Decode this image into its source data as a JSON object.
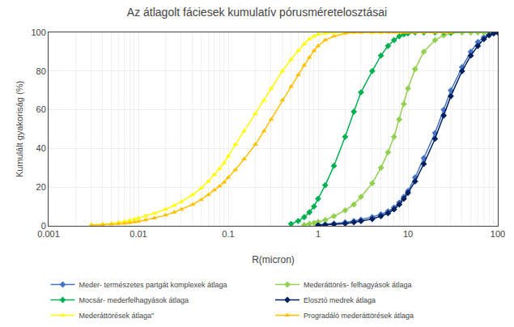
{
  "chart_data": {
    "type": "line",
    "title": "Az átlagolt fáciesek kumulatív pórusméretelosztásai",
    "x_label": "R(micron)",
    "y_label": "Kumulált gyakoriság (%)",
    "log": "x",
    "xlim": [
      0.001,
      100
    ],
    "ylim": [
      0,
      100
    ],
    "xticks": [
      0.001,
      0.01,
      0.1,
      1,
      10,
      100
    ],
    "yticks": [
      0,
      20,
      40,
      60,
      80,
      100
    ],
    "grid": true,
    "legend": "bottom",
    "series": [
      {
        "name": "Meder- természetes partgát komplexek átlaga",
        "color": "#4472c4",
        "marker": "diamond",
        "x": [
          1.0,
          1.2,
          1.5,
          2.0,
          2.5,
          3.0,
          4.0,
          5.0,
          6.0,
          7.0,
          8.0,
          9.0,
          10.0,
          12.0,
          15.0,
          20.0,
          25.0,
          30.0,
          40.0,
          50.0,
          60.0,
          70.0,
          80.0,
          90.0,
          100.0
        ],
        "values": [
          0.5,
          0.8,
          1.2,
          1.8,
          2.5,
          3.2,
          4.5,
          6.0,
          7.5,
          9.5,
          12.0,
          15.0,
          18.0,
          25.0,
          35.0,
          48.0,
          60.0,
          70.0,
          82.0,
          90.0,
          95.0,
          97.5,
          99.0,
          99.5,
          100.0
        ]
      },
      {
        "name": "Mederáttörés- felhagyások átlaga",
        "color": "#92d050",
        "marker": "diamond",
        "x": [
          0.7,
          0.8,
          0.9,
          1.0,
          1.2,
          1.5,
          2.0,
          2.5,
          3.0,
          4.0,
          5.0,
          6.0,
          7.0,
          8.0,
          9.0,
          10.0,
          12.0,
          15.0,
          20.0,
          25.0,
          30.0,
          40.0,
          50.0,
          60.0,
          70.0,
          80.0,
          90.0,
          100.0
        ],
        "values": [
          0.5,
          1.0,
          1.5,
          2.0,
          3.0,
          5.0,
          8.0,
          11.0,
          15.0,
          22.0,
          30.0,
          38.0,
          46.0,
          55.0,
          63.0,
          71.0,
          81.0,
          90.0,
          96.0,
          98.5,
          99.5,
          100.0,
          100.0,
          100.0,
          100.0,
          100.0,
          100.0,
          100.0
        ]
      },
      {
        "name": "Mocsár- mederfelhagyások átlaga",
        "color": "#00b050",
        "marker": "diamond",
        "x": [
          0.5,
          0.6,
          0.7,
          0.8,
          0.9,
          1.0,
          1.2,
          1.5,
          2.0,
          2.5,
          3.0,
          4.0,
          5.0,
          6.0,
          7.0,
          8.0,
          9.0,
          10.0,
          12.0,
          15.0,
          20.0,
          25.0,
          30.0
        ],
        "values": [
          1.0,
          2.5,
          4.5,
          7.0,
          10.0,
          14.0,
          21.0,
          31.0,
          46.0,
          59.0,
          69.0,
          80.0,
          88.0,
          93.0,
          96.0,
          98.0,
          99.0,
          99.5,
          100.0,
          100.0,
          100.0,
          100.0,
          100.0
        ]
      },
      {
        "name": "Elosztó medrek átlaga",
        "color": "#002060",
        "marker": "diamond",
        "x": [
          1.0,
          1.2,
          1.5,
          2.0,
          2.5,
          3.0,
          4.0,
          5.0,
          6.0,
          7.0,
          8.0,
          9.0,
          10.0,
          12.0,
          15.0,
          20.0,
          25.0,
          30.0,
          40.0,
          50.0,
          60.0,
          70.0,
          80.0,
          90.0,
          100.0
        ],
        "values": [
          0.3,
          0.5,
          0.8,
          1.2,
          1.8,
          2.5,
          3.5,
          5.0,
          6.5,
          8.5,
          11.0,
          14.0,
          17.0,
          23.0,
          32.0,
          45.0,
          57.0,
          67.0,
          80.0,
          88.0,
          93.0,
          96.5,
          98.5,
          99.5,
          100.0
        ]
      },
      {
        "name": "Mederáttörések átlaga\"",
        "color": "#ffff00",
        "marker": "triangle-up",
        "x": [
          0.003,
          0.004,
          0.005,
          0.006,
          0.007,
          0.008,
          0.009,
          0.01,
          0.012,
          0.015,
          0.02,
          0.025,
          0.03,
          0.04,
          0.05,
          0.06,
          0.07,
          0.08,
          0.09,
          0.1,
          0.12,
          0.15,
          0.2,
          0.25,
          0.3,
          0.4,
          0.5,
          0.6,
          0.7,
          0.8,
          0.9,
          1.0,
          1.2,
          1.5,
          2.0,
          2.5,
          3.0,
          4.0,
          5.0
        ],
        "values": [
          0.5,
          0.8,
          1.2,
          1.7,
          2.2,
          2.8,
          3.4,
          4.0,
          5.0,
          6.5,
          8.5,
          10.5,
          12.5,
          16.0,
          19.5,
          23.0,
          26.5,
          29.5,
          32.5,
          36.0,
          42.0,
          49.0,
          58.0,
          65.0,
          71.0,
          80.0,
          86.0,
          90.5,
          94.0,
          96.5,
          98.0,
          99.0,
          99.5,
          100.0,
          100.0,
          100.0,
          100.0,
          100.0,
          100.0
        ]
      },
      {
        "name": "Progradáló mederáttörések átlaga",
        "color": "#ffc000",
        "marker": "triangle-up",
        "x": [
          0.003,
          0.004,
          0.005,
          0.006,
          0.007,
          0.008,
          0.009,
          0.01,
          0.012,
          0.015,
          0.02,
          0.025,
          0.03,
          0.04,
          0.05,
          0.06,
          0.07,
          0.08,
          0.09,
          0.1,
          0.12,
          0.15,
          0.2,
          0.25,
          0.3,
          0.4,
          0.5,
          0.6,
          0.7,
          0.8,
          0.9,
          1.0,
          1.2,
          1.5,
          2.0,
          2.5,
          3.0,
          4.0,
          5.0,
          6.0,
          7.0,
          8.0,
          9.0,
          10.0,
          12.0,
          15.0,
          20.0,
          25.0,
          30.0
        ],
        "values": [
          0.3,
          0.5,
          0.8,
          1.0,
          1.3,
          1.6,
          2.0,
          2.3,
          3.0,
          4.0,
          5.5,
          7.0,
          8.5,
          11.0,
          13.5,
          16.0,
          18.5,
          20.5,
          22.5,
          25.0,
          29.0,
          34.5,
          42.0,
          49.0,
          55.0,
          65.0,
          72.0,
          78.0,
          83.0,
          87.0,
          90.5,
          93.0,
          96.0,
          98.0,
          99.5,
          100.0,
          100.0,
          100.0,
          100.0,
          100.0,
          100.0,
          100.0,
          100.0,
          100.0,
          100.0,
          100.0,
          100.0,
          100.0,
          100.0
        ]
      }
    ]
  }
}
